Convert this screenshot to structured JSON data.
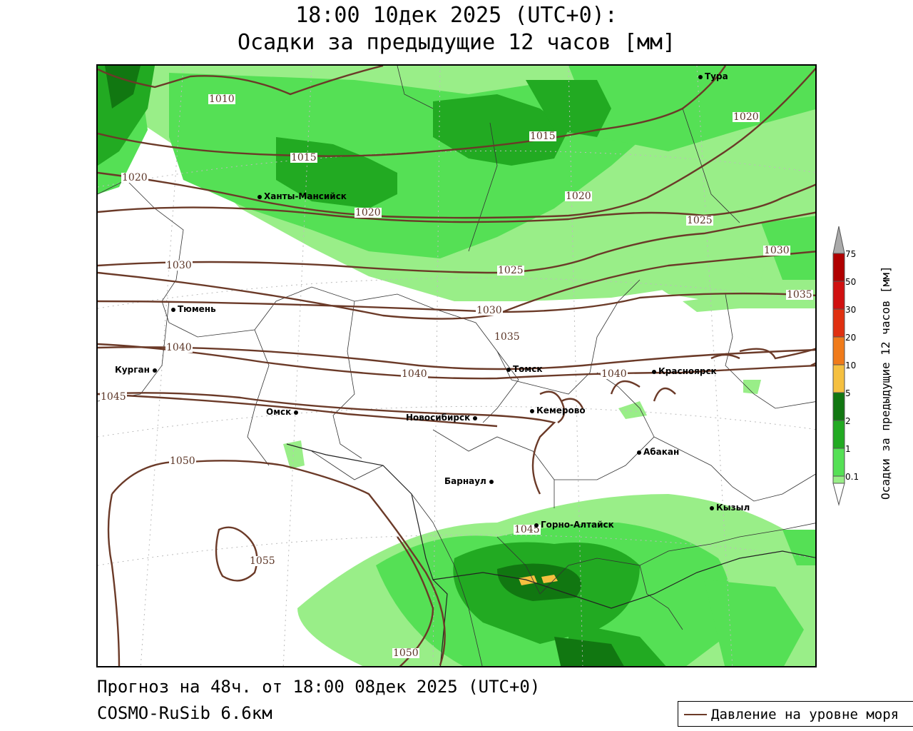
{
  "header": {
    "title_line1": "18:00 10дек 2025 (UTC+0):",
    "title_line2": "Осадки за предыдущие 12 часов [мм]"
  },
  "map": {
    "cities": [
      {
        "name": "Тура"
      },
      {
        "name": "Ханты-Мансийск"
      },
      {
        "name": "Тюмень"
      },
      {
        "name": "Курган"
      },
      {
        "name": "Омск"
      },
      {
        "name": "Новосибирск"
      },
      {
        "name": "Томск"
      },
      {
        "name": "Кемерово"
      },
      {
        "name": "Красноярск"
      },
      {
        "name": "Барнаул"
      },
      {
        "name": "Абакан"
      },
      {
        "name": "Горно-Алтайск"
      },
      {
        "name": "Кызыл"
      }
    ],
    "isobar_labels": [
      "1010",
      "1015",
      "1015",
      "1020",
      "1020",
      "1020",
      "1020",
      "1025",
      "1025",
      "1030",
      "1030",
      "1030",
      "1035",
      "1035",
      "1040",
      "1040",
      "1040",
      "1045",
      "1045",
      "1050",
      "1050",
      "1055"
    ],
    "colors": {
      "isobar": "#6b3a28",
      "precip_0_1": "#99ee88",
      "precip_1": "#55e055",
      "precip_2": "#22aa22",
      "precip_5": "#117711",
      "precip_10": "#f5c040",
      "precip_20": "#f07b1a",
      "precip_30": "#e03010",
      "precip_50": "#d01010",
      "precip_75": "#b00000",
      "precip_over": "#aaaaaa"
    }
  },
  "legend": {
    "title": "Осадки за предыдущие 12 часов [мм]",
    "ticks": [
      "75",
      "50",
      "30",
      "20",
      "10",
      "5",
      "2",
      "1",
      "0.1"
    ]
  },
  "footer": {
    "forecast": "Прогноз на 48ч. от 18:00 08дек 2025 (UTC+0)",
    "model": "COSMO-RuSib 6.6км"
  },
  "pressure_legend": {
    "label": "Давление на уровне моря"
  }
}
